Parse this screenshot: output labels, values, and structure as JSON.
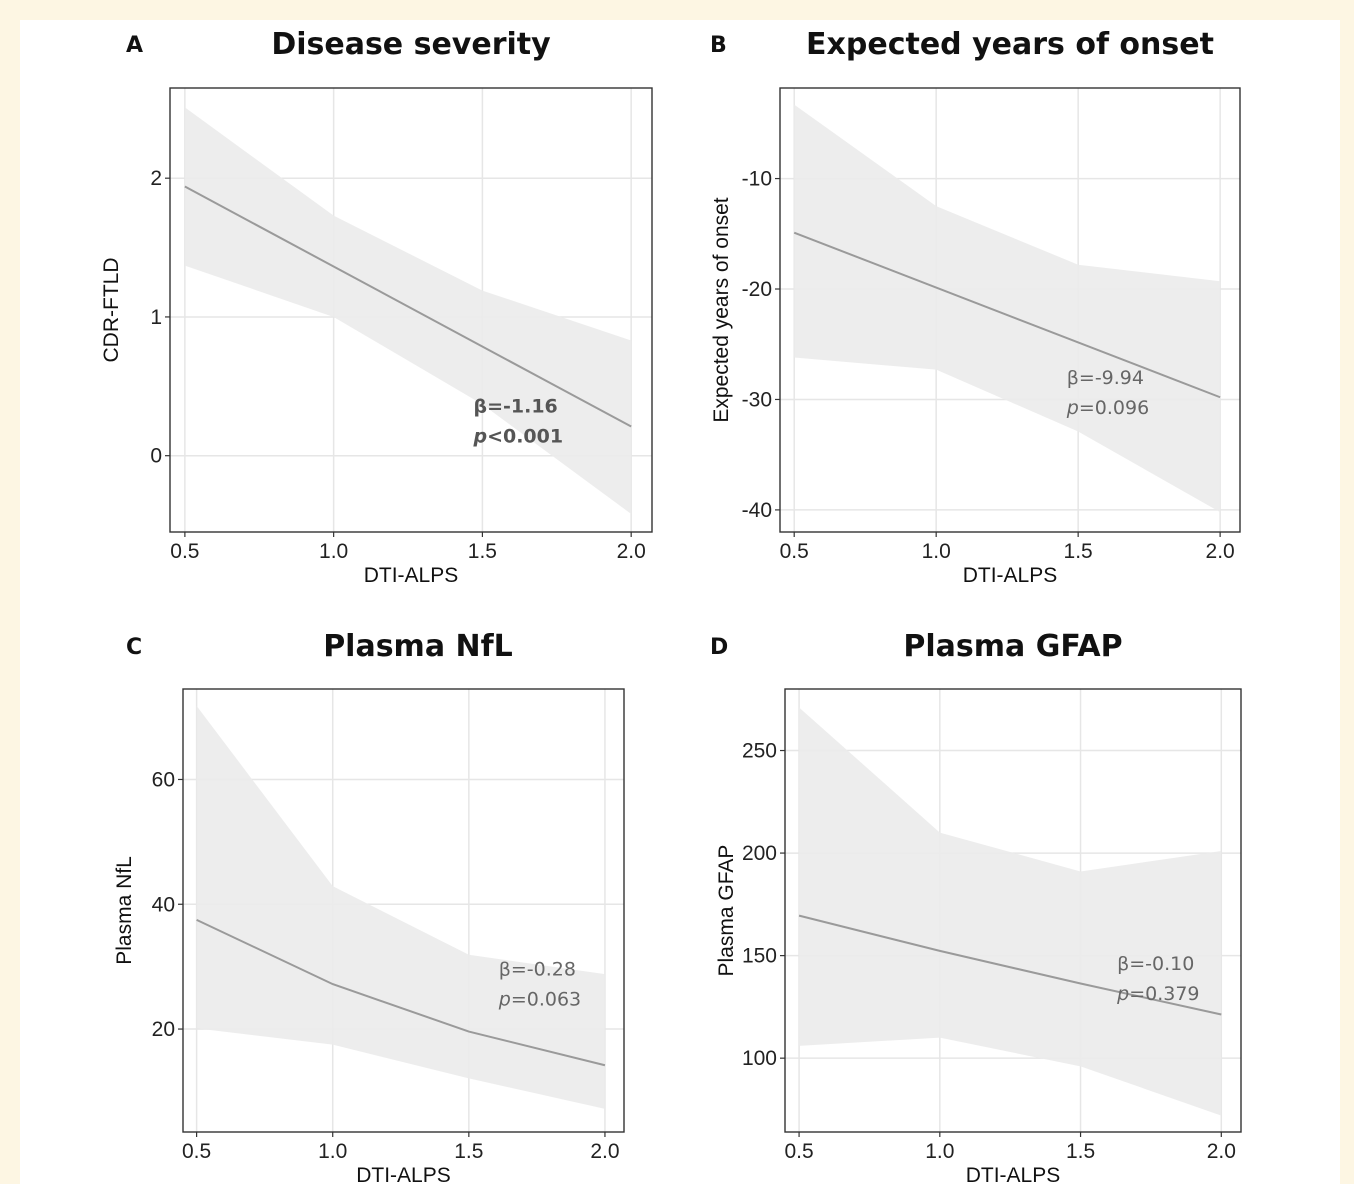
{
  "chart_data": [
    {
      "letter": "A",
      "title": "Disease severity",
      "type": "line",
      "xlabel": "DTI-ALPS",
      "ylabel": "CDR-FTLD",
      "xlim": [
        0.45,
        2.07
      ],
      "ylim": [
        -0.55,
        2.65
      ],
      "xticks": [
        0.5,
        1.0,
        1.5,
        2.0
      ],
      "xtick_labels": [
        "0.5",
        "1.0",
        "1.5",
        "2.0"
      ],
      "yticks": [
        0,
        1,
        2
      ],
      "ytick_labels": [
        "0",
        "1",
        "2"
      ],
      "grid": true,
      "fit": {
        "x": [
          0.5,
          2.0
        ],
        "y": [
          1.94,
          0.21
        ]
      },
      "ci_upper": {
        "x": [
          0.5,
          1.0,
          1.5,
          2.0
        ],
        "y": [
          2.51,
          1.73,
          1.19,
          0.83
        ]
      },
      "ci_lower": {
        "x": [
          0.5,
          1.0,
          1.5,
          2.0
        ],
        "y": [
          1.37,
          1.0,
          0.37,
          -0.42
        ]
      },
      "annotation": {
        "beta": "β=-1.16",
        "p_prefix": "p",
        "p_value": "<0.001",
        "bold": true,
        "x": 1.47,
        "y": 0.31
      }
    },
    {
      "letter": "B",
      "title": "Expected years of onset",
      "type": "line",
      "xlabel": "DTI-ALPS",
      "ylabel": "Expected years of onset",
      "xlim": [
        0.45,
        2.07
      ],
      "ylim": [
        -42,
        -1.8
      ],
      "xticks": [
        0.5,
        1.0,
        1.5,
        2.0
      ],
      "xtick_labels": [
        "0.5",
        "1.0",
        "1.5",
        "2.0"
      ],
      "yticks": [
        -40,
        -30,
        -20,
        -10
      ],
      "ytick_labels": [
        "-40",
        "-30",
        "-20",
        "-10"
      ],
      "grid": true,
      "fit": {
        "x": [
          0.5,
          2.0
        ],
        "y": [
          -14.9,
          -29.8
        ]
      },
      "ci_upper": {
        "x": [
          0.5,
          1.0,
          1.5,
          2.0
        ],
        "y": [
          -3.3,
          -12.5,
          -17.8,
          -19.3
        ]
      },
      "ci_lower": {
        "x": [
          0.5,
          1.0,
          1.5,
          2.0
        ],
        "y": [
          -26.2,
          -27.3,
          -32.9,
          -40.2
        ]
      },
      "annotation": {
        "beta": "β=-9.94",
        "p_prefix": "p",
        "p_value": "=0.096",
        "bold": false,
        "x": 1.46,
        "y": -28.6
      }
    },
    {
      "letter": "C",
      "title": "Plasma NfL",
      "type": "line",
      "xlabel": "DTI-ALPS",
      "ylabel": "Plasma NfL",
      "xlim": [
        0.45,
        2.07
      ],
      "ylim": [
        3.5,
        74.5
      ],
      "xticks": [
        0.5,
        1.0,
        1.5,
        2.0
      ],
      "xtick_labels": [
        "0.5",
        "1.0",
        "1.5",
        "2.0"
      ],
      "yticks": [
        20,
        40,
        60
      ],
      "ytick_labels": [
        "20",
        "40",
        "60"
      ],
      "grid": true,
      "fit": {
        "x": [
          0.5,
          1.0,
          1.5,
          2.0
        ],
        "y": [
          37.5,
          27.2,
          19.6,
          14.2
        ]
      },
      "ci_upper": {
        "x": [
          0.5,
          1.0,
          1.5,
          2.0
        ],
        "y": [
          71.8,
          42.9,
          31.9,
          28.8
        ]
      },
      "ci_lower": {
        "x": [
          0.5,
          1.0,
          1.5,
          2.0
        ],
        "y": [
          20.1,
          17.5,
          12.1,
          7.2
        ]
      },
      "annotation": {
        "beta": "β=-0.28",
        "p_prefix": "p",
        "p_value": "=0.063",
        "bold": false,
        "x": 1.61,
        "y": 28.6
      }
    },
    {
      "letter": "D",
      "title": "Plasma GFAP",
      "type": "line",
      "xlabel": "DTI-ALPS",
      "ylabel": "Plasma GFAP",
      "xlim": [
        0.45,
        2.07
      ],
      "ylim": [
        64,
        280
      ],
      "xticks": [
        0.5,
        1.0,
        1.5,
        2.0
      ],
      "xtick_labels": [
        "0.5",
        "1.0",
        "1.5",
        "2.0"
      ],
      "yticks": [
        100,
        150,
        200,
        250
      ],
      "ytick_labels": [
        "100",
        "150",
        "200",
        "250"
      ],
      "grid": true,
      "fit": {
        "x": [
          0.5,
          1.0,
          1.5,
          2.0
        ],
        "y": [
          169.5,
          152.3,
          136.4,
          121.3
        ]
      },
      "ci_upper": {
        "x": [
          0.5,
          1.0,
          1.5,
          2.0
        ],
        "y": [
          271,
          210,
          191,
          201
        ]
      },
      "ci_lower": {
        "x": [
          0.5,
          1.0,
          1.5,
          2.0
        ],
        "y": [
          106,
          110,
          96,
          72
        ]
      },
      "annotation": {
        "beta": "β=-0.10",
        "p_prefix": "p",
        "p_value": "=0.379",
        "bold": false,
        "x": 1.63,
        "y": 143
      }
    }
  ]
}
